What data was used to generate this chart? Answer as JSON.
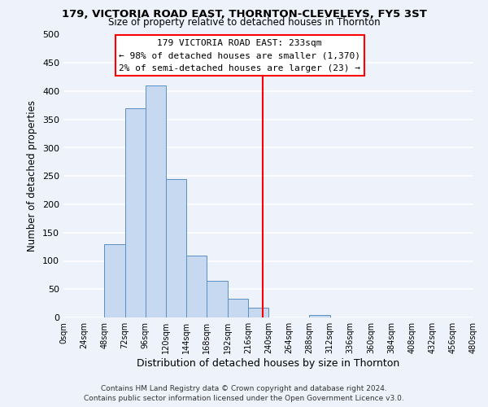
{
  "title": "179, VICTORIA ROAD EAST, THORNTON-CLEVELEYS, FY5 3ST",
  "subtitle": "Size of property relative to detached houses in Thornton",
  "xlabel": "Distribution of detached houses by size in Thornton",
  "ylabel": "Number of detached properties",
  "bar_edges": [
    0,
    24,
    48,
    72,
    96,
    120,
    144,
    168,
    192,
    216,
    240,
    264,
    288,
    312,
    336,
    360,
    384,
    408,
    432,
    456,
    480
  ],
  "bar_heights": [
    0,
    0,
    130,
    370,
    410,
    245,
    110,
    65,
    33,
    17,
    0,
    0,
    5,
    0,
    0,
    0,
    0,
    0,
    0,
    0
  ],
  "bar_color": "#c6d9f0",
  "bar_edge_color": "#5a8fc3",
  "vline_x": 233,
  "vline_color": "red",
  "annotation_title": "179 VICTORIA ROAD EAST: 233sqm",
  "annotation_line1": "← 98% of detached houses are smaller (1,370)",
  "annotation_line2": "2% of semi-detached houses are larger (23) →",
  "annotation_box_color": "white",
  "annotation_box_edge": "red",
  "ylim": [
    0,
    500
  ],
  "xlim": [
    0,
    480
  ],
  "yticks": [
    0,
    50,
    100,
    150,
    200,
    250,
    300,
    350,
    400,
    450,
    500
  ],
  "xtick_labels": [
    "0sqm",
    "24sqm",
    "48sqm",
    "72sqm",
    "96sqm",
    "120sqm",
    "144sqm",
    "168sqm",
    "192sqm",
    "216sqm",
    "240sqm",
    "264sqm",
    "288sqm",
    "312sqm",
    "336sqm",
    "360sqm",
    "384sqm",
    "408sqm",
    "432sqm",
    "456sqm",
    "480sqm"
  ],
  "footer_line1": "Contains HM Land Registry data © Crown copyright and database right 2024.",
  "footer_line2": "Contains public sector information licensed under the Open Government Licence v3.0.",
  "background_color": "#eef2fa",
  "grid_color": "white"
}
